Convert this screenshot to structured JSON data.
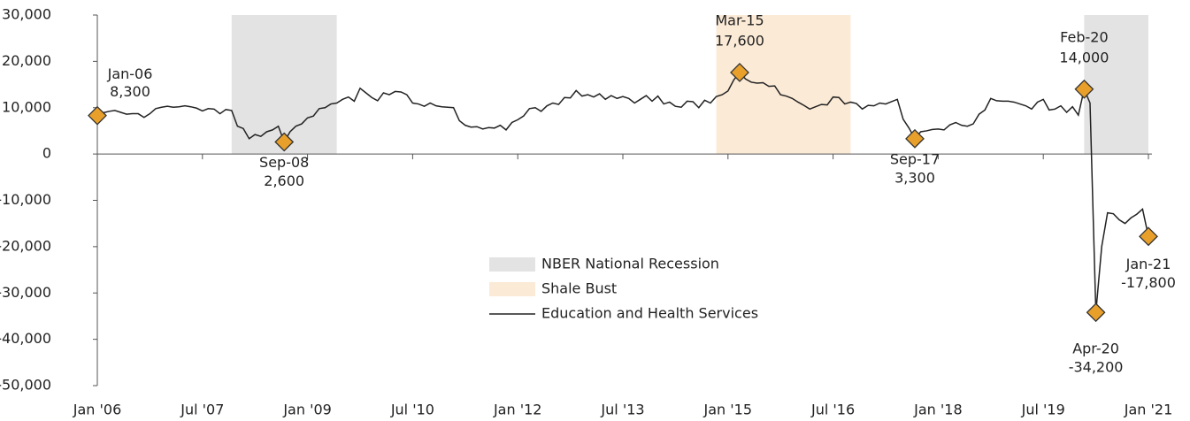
{
  "chart_data": {
    "type": "line",
    "x": [
      "2006-01",
      "2006-02",
      "2006-03",
      "2006-04",
      "2006-05",
      "2006-06",
      "2006-07",
      "2006-08",
      "2006-09",
      "2006-10",
      "2006-11",
      "2006-12",
      "2007-01",
      "2007-02",
      "2007-03",
      "2007-04",
      "2007-05",
      "2007-06",
      "2007-07",
      "2007-08",
      "2007-09",
      "2007-10",
      "2007-11",
      "2007-12",
      "2008-01",
      "2008-02",
      "2008-03",
      "2008-04",
      "2008-05",
      "2008-06",
      "2008-07",
      "2008-08",
      "2008-09",
      "2008-10",
      "2008-11",
      "2008-12",
      "2009-01",
      "2009-02",
      "2009-03",
      "2009-04",
      "2009-05",
      "2009-06",
      "2009-07",
      "2009-08",
      "2009-09",
      "2009-10",
      "2009-11",
      "2009-12",
      "2010-01",
      "2010-02",
      "2010-03",
      "2010-04",
      "2010-05",
      "2010-06",
      "2010-07",
      "2010-08",
      "2010-09",
      "2010-10",
      "2010-11",
      "2010-12",
      "2011-01",
      "2011-02",
      "2011-03",
      "2011-04",
      "2011-05",
      "2011-06",
      "2011-07",
      "2011-08",
      "2011-09",
      "2011-10",
      "2011-11",
      "2011-12",
      "2012-01",
      "2012-02",
      "2012-03",
      "2012-04",
      "2012-05",
      "2012-06",
      "2012-07",
      "2012-08",
      "2012-09",
      "2012-10",
      "2012-11",
      "2012-12",
      "2013-01",
      "2013-02",
      "2013-03",
      "2013-04",
      "2013-05",
      "2013-06",
      "2013-07",
      "2013-08",
      "2013-09",
      "2013-10",
      "2013-11",
      "2013-12",
      "2014-01",
      "2014-02",
      "2014-03",
      "2014-04",
      "2014-05",
      "2014-06",
      "2014-07",
      "2014-08",
      "2014-09",
      "2014-10",
      "2014-11",
      "2014-12",
      "2015-01",
      "2015-02",
      "2015-03",
      "2015-04",
      "2015-05",
      "2015-06",
      "2015-07",
      "2015-08",
      "2015-09",
      "2015-10",
      "2015-11",
      "2015-12",
      "2016-01",
      "2016-02",
      "2016-03",
      "2016-04",
      "2016-05",
      "2016-06",
      "2016-07",
      "2016-08",
      "2016-09",
      "2016-10",
      "2016-11",
      "2016-12",
      "2017-01",
      "2017-02",
      "2017-03",
      "2017-04",
      "2017-05",
      "2017-06",
      "2017-07",
      "2017-08",
      "2017-09",
      "2017-10",
      "2017-11",
      "2017-12",
      "2018-01",
      "2018-02",
      "2018-03",
      "2018-04",
      "2018-05",
      "2018-06",
      "2018-07",
      "2018-08",
      "2018-09",
      "2018-10",
      "2018-11",
      "2018-12",
      "2019-01",
      "2019-02",
      "2019-03",
      "2019-04",
      "2019-05",
      "2019-06",
      "2019-07",
      "2019-08",
      "2019-09",
      "2019-10",
      "2019-11",
      "2019-12",
      "2020-01",
      "2020-02",
      "2020-03",
      "2020-04",
      "2020-05",
      "2020-06",
      "2020-07",
      "2020-08",
      "2020-09",
      "2020-10",
      "2020-11",
      "2020-12",
      "2021-01"
    ],
    "series": [
      {
        "name": "Education and Health Services",
        "color": "#222222",
        "values": [
          8300,
          8900,
          9200,
          9400,
          9000,
          8600,
          8700,
          8700,
          7900,
          8700,
          9800,
          10100,
          10300,
          10100,
          10200,
          10400,
          10200,
          9900,
          9300,
          9800,
          9700,
          8700,
          9600,
          9400,
          6000,
          5500,
          3300,
          4200,
          3800,
          4800,
          5200,
          6000,
          2600,
          4800,
          6000,
          6500,
          7800,
          8200,
          9800,
          10000,
          10800,
          11000,
          11800,
          12300,
          11400,
          14200,
          13200,
          12200,
          11500,
          13200,
          12800,
          13500,
          13400,
          12800,
          11000,
          10800,
          10300,
          11000,
          10400,
          10200,
          10100,
          10000,
          7200,
          6200,
          5800,
          5900,
          5400,
          5700,
          5600,
          6200,
          5200,
          6800,
          7400,
          8200,
          9800,
          10000,
          9200,
          10400,
          11000,
          10700,
          12200,
          12100,
          13700,
          12500,
          12800,
          12300,
          13000,
          11800,
          12600,
          12000,
          12400,
          12000,
          11000,
          11800,
          12600,
          11400,
          12500,
          10800,
          11200,
          10300,
          10100,
          11400,
          11300,
          10000,
          11600,
          11000,
          12400,
          12800,
          13600,
          16000,
          17600,
          16200,
          15500,
          15300,
          15400,
          14600,
          14700,
          12800,
          12500,
          12000,
          11200,
          10500,
          9700,
          10200,
          10700,
          10600,
          12300,
          12200,
          10800,
          11200,
          10900,
          9700,
          10500,
          10400,
          11000,
          10800,
          11300,
          11800,
          7500,
          5600,
          3300,
          4800,
          5000,
          5300,
          5400,
          5200,
          6300,
          6800,
          6200,
          6000,
          6500,
          8600,
          9500,
          12000,
          11500,
          11400,
          11400,
          11200,
          10800,
          10400,
          9700,
          11200,
          11800,
          9500,
          9700,
          10400,
          9000,
          10200,
          8400,
          14000,
          11000,
          -34200,
          -20000,
          -12700,
          -12900,
          -14200,
          -15000,
          -13800,
          -13000,
          -11900,
          -17800
        ]
      }
    ],
    "shading": [
      {
        "name": "NBER National Recession",
        "color": "#e3e3e3",
        "periods": [
          [
            "2007-12",
            "2009-06"
          ],
          [
            "2020-02",
            "2021-01"
          ]
        ]
      },
      {
        "name": "Shale Bust",
        "color": "#fbead6",
        "periods": [
          [
            "2014-11",
            "2016-10"
          ]
        ]
      }
    ],
    "annotations": [
      {
        "x": "2006-01",
        "label": "Jan-06",
        "value": 8300,
        "value_label": "8,300"
      },
      {
        "x": "2008-09",
        "label": "Sep-08",
        "value": 2600,
        "value_label": "2,600"
      },
      {
        "x": "2015-03",
        "label": "Mar-15",
        "value": 17600,
        "value_label": "17,600"
      },
      {
        "x": "2017-09",
        "label": "Sep-17",
        "value": 3300,
        "value_label": "3,300"
      },
      {
        "x": "2020-02",
        "label": "Feb-20",
        "value": 14000,
        "value_label": "14,000"
      },
      {
        "x": "2020-04",
        "label": "Apr-20",
        "value": -34200,
        "value_label": "-34,200"
      },
      {
        "x": "2021-01",
        "label": "Jan-21",
        "value": -17800,
        "value_label": "-17,800"
      }
    ],
    "marker_color": "#e8a02a",
    "xlim": [
      "2006-01",
      "2021-01"
    ],
    "xticks": [
      {
        "value": "2006-01",
        "label": "Jan '06"
      },
      {
        "value": "2007-07",
        "label": "Jul '07"
      },
      {
        "value": "2009-01",
        "label": "Jan '09"
      },
      {
        "value": "2010-07",
        "label": "Jul '10"
      },
      {
        "value": "2012-01",
        "label": "Jan '12"
      },
      {
        "value": "2013-07",
        "label": "Jul '13"
      },
      {
        "value": "2015-01",
        "label": "Jan '15"
      },
      {
        "value": "2016-07",
        "label": "Jul '16"
      },
      {
        "value": "2018-01",
        "label": "Jan '18"
      },
      {
        "value": "2019-07",
        "label": "Jul '19"
      },
      {
        "value": "2021-01",
        "label": "Jan '21"
      }
    ],
    "ylim": [
      -50000,
      30000
    ],
    "yticks": [
      {
        "value": 30000,
        "label": "30,000"
      },
      {
        "value": 20000,
        "label": "20,000"
      },
      {
        "value": 10000,
        "label": "10,000"
      },
      0,
      {
        "value": -10000,
        "label": "-10,000"
      },
      {
        "value": -20000,
        "label": "-20,000"
      },
      {
        "value": -30000,
        "label": "-30,000"
      },
      {
        "value": -40000,
        "label": "-40,000"
      },
      {
        "value": -50000,
        "label": "-50,000"
      }
    ]
  }
}
